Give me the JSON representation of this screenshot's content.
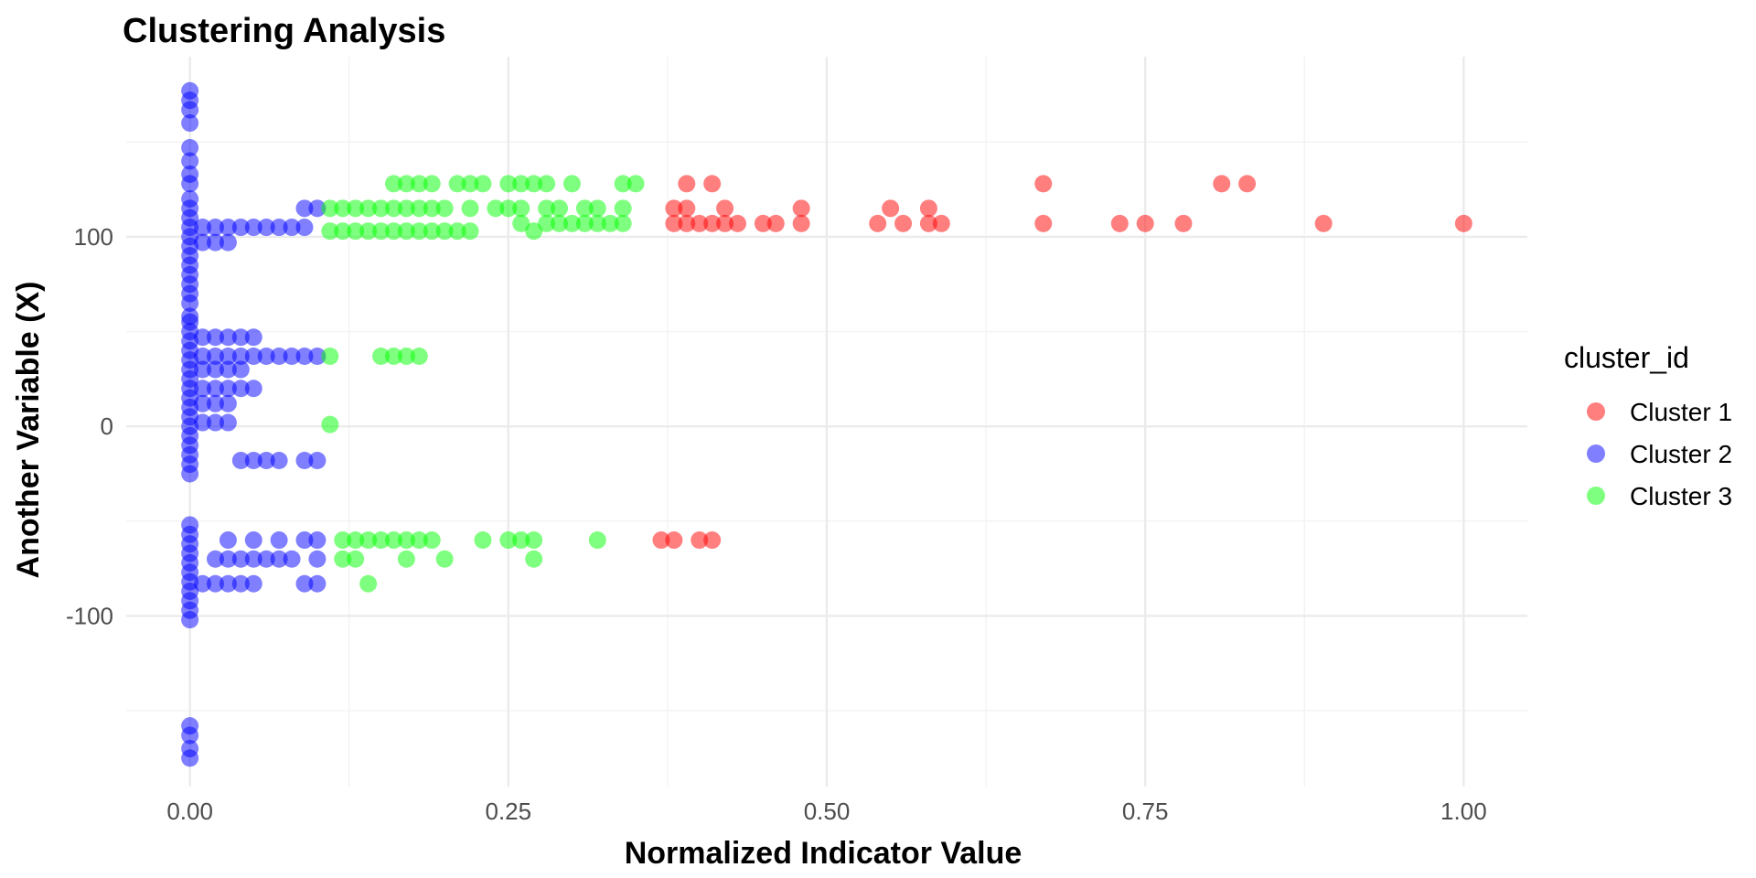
{
  "chart_data": {
    "type": "scatter",
    "title": "Clustering Analysis",
    "xlabel": "Normalized Indicator Value",
    "ylabel": "Another Variable (X)",
    "xlim": [
      -0.05,
      1.05
    ],
    "ylim": [
      -190,
      195
    ],
    "x_ticks": [
      0,
      0.25,
      0.5,
      0.75,
      1.0
    ],
    "x_tick_labels": [
      "0.00",
      "0.25",
      "0.50",
      "0.75",
      "1.00"
    ],
    "y_ticks": [
      -100,
      0,
      100
    ],
    "y_tick_labels": [
      "-100",
      "0",
      "100"
    ],
    "grid": true,
    "legend": {
      "title": "cluster_id",
      "position": "right"
    },
    "series": [
      {
        "name": "Cluster 1",
        "color": "#FF0000",
        "points": [
          [
            0.38,
            107
          ],
          [
            0.39,
            107
          ],
          [
            0.4,
            107
          ],
          [
            0.41,
            107
          ],
          [
            0.42,
            107
          ],
          [
            0.43,
            107
          ],
          [
            0.45,
            107
          ],
          [
            0.46,
            107
          ],
          [
            0.48,
            107
          ],
          [
            0.54,
            107
          ],
          [
            0.56,
            107
          ],
          [
            0.58,
            107
          ],
          [
            0.59,
            107
          ],
          [
            0.67,
            107
          ],
          [
            0.73,
            107
          ],
          [
            0.75,
            107
          ],
          [
            0.78,
            107
          ],
          [
            0.89,
            107
          ],
          [
            1.0,
            107
          ],
          [
            0.38,
            115
          ],
          [
            0.39,
            115
          ],
          [
            0.42,
            115
          ],
          [
            0.48,
            115
          ],
          [
            0.55,
            115
          ],
          [
            0.58,
            115
          ],
          [
            0.39,
            128
          ],
          [
            0.41,
            128
          ],
          [
            0.67,
            128
          ],
          [
            0.81,
            128
          ],
          [
            0.83,
            128
          ],
          [
            0.37,
            -60
          ],
          [
            0.38,
            -60
          ],
          [
            0.4,
            -60
          ],
          [
            0.41,
            -60
          ]
        ]
      },
      {
        "name": "Cluster 2",
        "color": "#0000FF",
        "points": [
          [
            0,
            177
          ],
          [
            0,
            172
          ],
          [
            0,
            167
          ],
          [
            0,
            160
          ],
          [
            0,
            147
          ],
          [
            0,
            140
          ],
          [
            0,
            133
          ],
          [
            0,
            128
          ],
          [
            0,
            120
          ],
          [
            0,
            115
          ],
          [
            0,
            110
          ],
          [
            0,
            105
          ],
          [
            0,
            100
          ],
          [
            0,
            95
          ],
          [
            0,
            90
          ],
          [
            0,
            85
          ],
          [
            0,
            80
          ],
          [
            0,
            75
          ],
          [
            0,
            70
          ],
          [
            0,
            65
          ],
          [
            0,
            58
          ],
          [
            0,
            55
          ],
          [
            0,
            50
          ],
          [
            0,
            45
          ],
          [
            0,
            40
          ],
          [
            0,
            35
          ],
          [
            0,
            30
          ],
          [
            0,
            25
          ],
          [
            0,
            20
          ],
          [
            0,
            15
          ],
          [
            0,
            10
          ],
          [
            0,
            5
          ],
          [
            0,
            0
          ],
          [
            0,
            -5
          ],
          [
            0,
            -10
          ],
          [
            0,
            -15
          ],
          [
            0,
            -20
          ],
          [
            0,
            -25
          ],
          [
            0,
            -52
          ],
          [
            0,
            -57
          ],
          [
            0,
            -62
          ],
          [
            0,
            -67
          ],
          [
            0,
            -72
          ],
          [
            0,
            -77
          ],
          [
            0,
            -82
          ],
          [
            0,
            -87
          ],
          [
            0,
            -92
          ],
          [
            0,
            -97
          ],
          [
            0,
            -102
          ],
          [
            0,
            -158
          ],
          [
            0,
            -163
          ],
          [
            0,
            -170
          ],
          [
            0,
            -175
          ],
          [
            0.01,
            105
          ],
          [
            0.02,
            105
          ],
          [
            0.03,
            105
          ],
          [
            0.04,
            105
          ],
          [
            0.05,
            105
          ],
          [
            0.06,
            105
          ],
          [
            0.07,
            105
          ],
          [
            0.08,
            105
          ],
          [
            0.09,
            105
          ],
          [
            0.02,
            97
          ],
          [
            0.03,
            97
          ],
          [
            0.01,
            97
          ],
          [
            0.09,
            115
          ],
          [
            0.1,
            115
          ],
          [
            0.01,
            47
          ],
          [
            0.02,
            47
          ],
          [
            0.03,
            47
          ],
          [
            0.04,
            47
          ],
          [
            0.05,
            47
          ],
          [
            0.01,
            37
          ],
          [
            0.02,
            37
          ],
          [
            0.03,
            37
          ],
          [
            0.04,
            37
          ],
          [
            0.05,
            37
          ],
          [
            0.06,
            37
          ],
          [
            0.07,
            37
          ],
          [
            0.08,
            37
          ],
          [
            0.09,
            37
          ],
          [
            0.1,
            37
          ],
          [
            0.01,
            30
          ],
          [
            0.02,
            30
          ],
          [
            0.03,
            30
          ],
          [
            0.04,
            30
          ],
          [
            0.01,
            20
          ],
          [
            0.02,
            20
          ],
          [
            0.03,
            20
          ],
          [
            0.04,
            20
          ],
          [
            0.05,
            20
          ],
          [
            0.01,
            12
          ],
          [
            0.02,
            12
          ],
          [
            0.03,
            12
          ],
          [
            0.01,
            2
          ],
          [
            0.02,
            2
          ],
          [
            0.03,
            2
          ],
          [
            0.04,
            -18
          ],
          [
            0.05,
            -18
          ],
          [
            0.06,
            -18
          ],
          [
            0.07,
            -18
          ],
          [
            0.09,
            -18
          ],
          [
            0.1,
            -18
          ],
          [
            0.03,
            -60
          ],
          [
            0.05,
            -60
          ],
          [
            0.07,
            -60
          ],
          [
            0.09,
            -60
          ],
          [
            0.1,
            -60
          ],
          [
            0.02,
            -70
          ],
          [
            0.03,
            -70
          ],
          [
            0.04,
            -70
          ],
          [
            0.05,
            -70
          ],
          [
            0.06,
            -70
          ],
          [
            0.07,
            -70
          ],
          [
            0.08,
            -70
          ],
          [
            0.1,
            -70
          ],
          [
            0.01,
            -83
          ],
          [
            0.02,
            -83
          ],
          [
            0.03,
            -83
          ],
          [
            0.04,
            -83
          ],
          [
            0.05,
            -83
          ],
          [
            0.09,
            -83
          ],
          [
            0.1,
            -83
          ]
        ]
      },
      {
        "name": "Cluster 3",
        "color": "#00FF00",
        "points": [
          [
            0.16,
            128
          ],
          [
            0.17,
            128
          ],
          [
            0.18,
            128
          ],
          [
            0.19,
            128
          ],
          [
            0.21,
            128
          ],
          [
            0.22,
            128
          ],
          [
            0.23,
            128
          ],
          [
            0.25,
            128
          ],
          [
            0.26,
            128
          ],
          [
            0.27,
            128
          ],
          [
            0.28,
            128
          ],
          [
            0.3,
            128
          ],
          [
            0.34,
            128
          ],
          [
            0.35,
            128
          ],
          [
            0.11,
            115
          ],
          [
            0.12,
            115
          ],
          [
            0.13,
            115
          ],
          [
            0.14,
            115
          ],
          [
            0.15,
            115
          ],
          [
            0.16,
            115
          ],
          [
            0.17,
            115
          ],
          [
            0.18,
            115
          ],
          [
            0.19,
            115
          ],
          [
            0.2,
            115
          ],
          [
            0.22,
            115
          ],
          [
            0.24,
            115
          ],
          [
            0.25,
            115
          ],
          [
            0.26,
            115
          ],
          [
            0.28,
            115
          ],
          [
            0.29,
            115
          ],
          [
            0.31,
            115
          ],
          [
            0.32,
            115
          ],
          [
            0.34,
            115
          ],
          [
            0.11,
            103
          ],
          [
            0.12,
            103
          ],
          [
            0.13,
            103
          ],
          [
            0.14,
            103
          ],
          [
            0.15,
            103
          ],
          [
            0.16,
            103
          ],
          [
            0.17,
            103
          ],
          [
            0.18,
            103
          ],
          [
            0.19,
            103
          ],
          [
            0.2,
            103
          ],
          [
            0.21,
            103
          ],
          [
            0.22,
            103
          ],
          [
            0.26,
            107
          ],
          [
            0.27,
            103
          ],
          [
            0.28,
            107
          ],
          [
            0.29,
            107
          ],
          [
            0.3,
            107
          ],
          [
            0.31,
            107
          ],
          [
            0.32,
            107
          ],
          [
            0.33,
            107
          ],
          [
            0.34,
            107
          ],
          [
            0.11,
            37
          ],
          [
            0.15,
            37
          ],
          [
            0.16,
            37
          ],
          [
            0.17,
            37
          ],
          [
            0.18,
            37
          ],
          [
            0.11,
            1
          ],
          [
            0.12,
            -60
          ],
          [
            0.13,
            -60
          ],
          [
            0.14,
            -60
          ],
          [
            0.15,
            -60
          ],
          [
            0.16,
            -60
          ],
          [
            0.17,
            -60
          ],
          [
            0.18,
            -60
          ],
          [
            0.19,
            -60
          ],
          [
            0.23,
            -60
          ],
          [
            0.25,
            -60
          ],
          [
            0.26,
            -60
          ],
          [
            0.27,
            -60
          ],
          [
            0.32,
            -60
          ],
          [
            0.12,
            -70
          ],
          [
            0.13,
            -70
          ],
          [
            0.17,
            -70
          ],
          [
            0.2,
            -70
          ],
          [
            0.27,
            -70
          ],
          [
            0.14,
            -83
          ]
        ]
      }
    ]
  }
}
